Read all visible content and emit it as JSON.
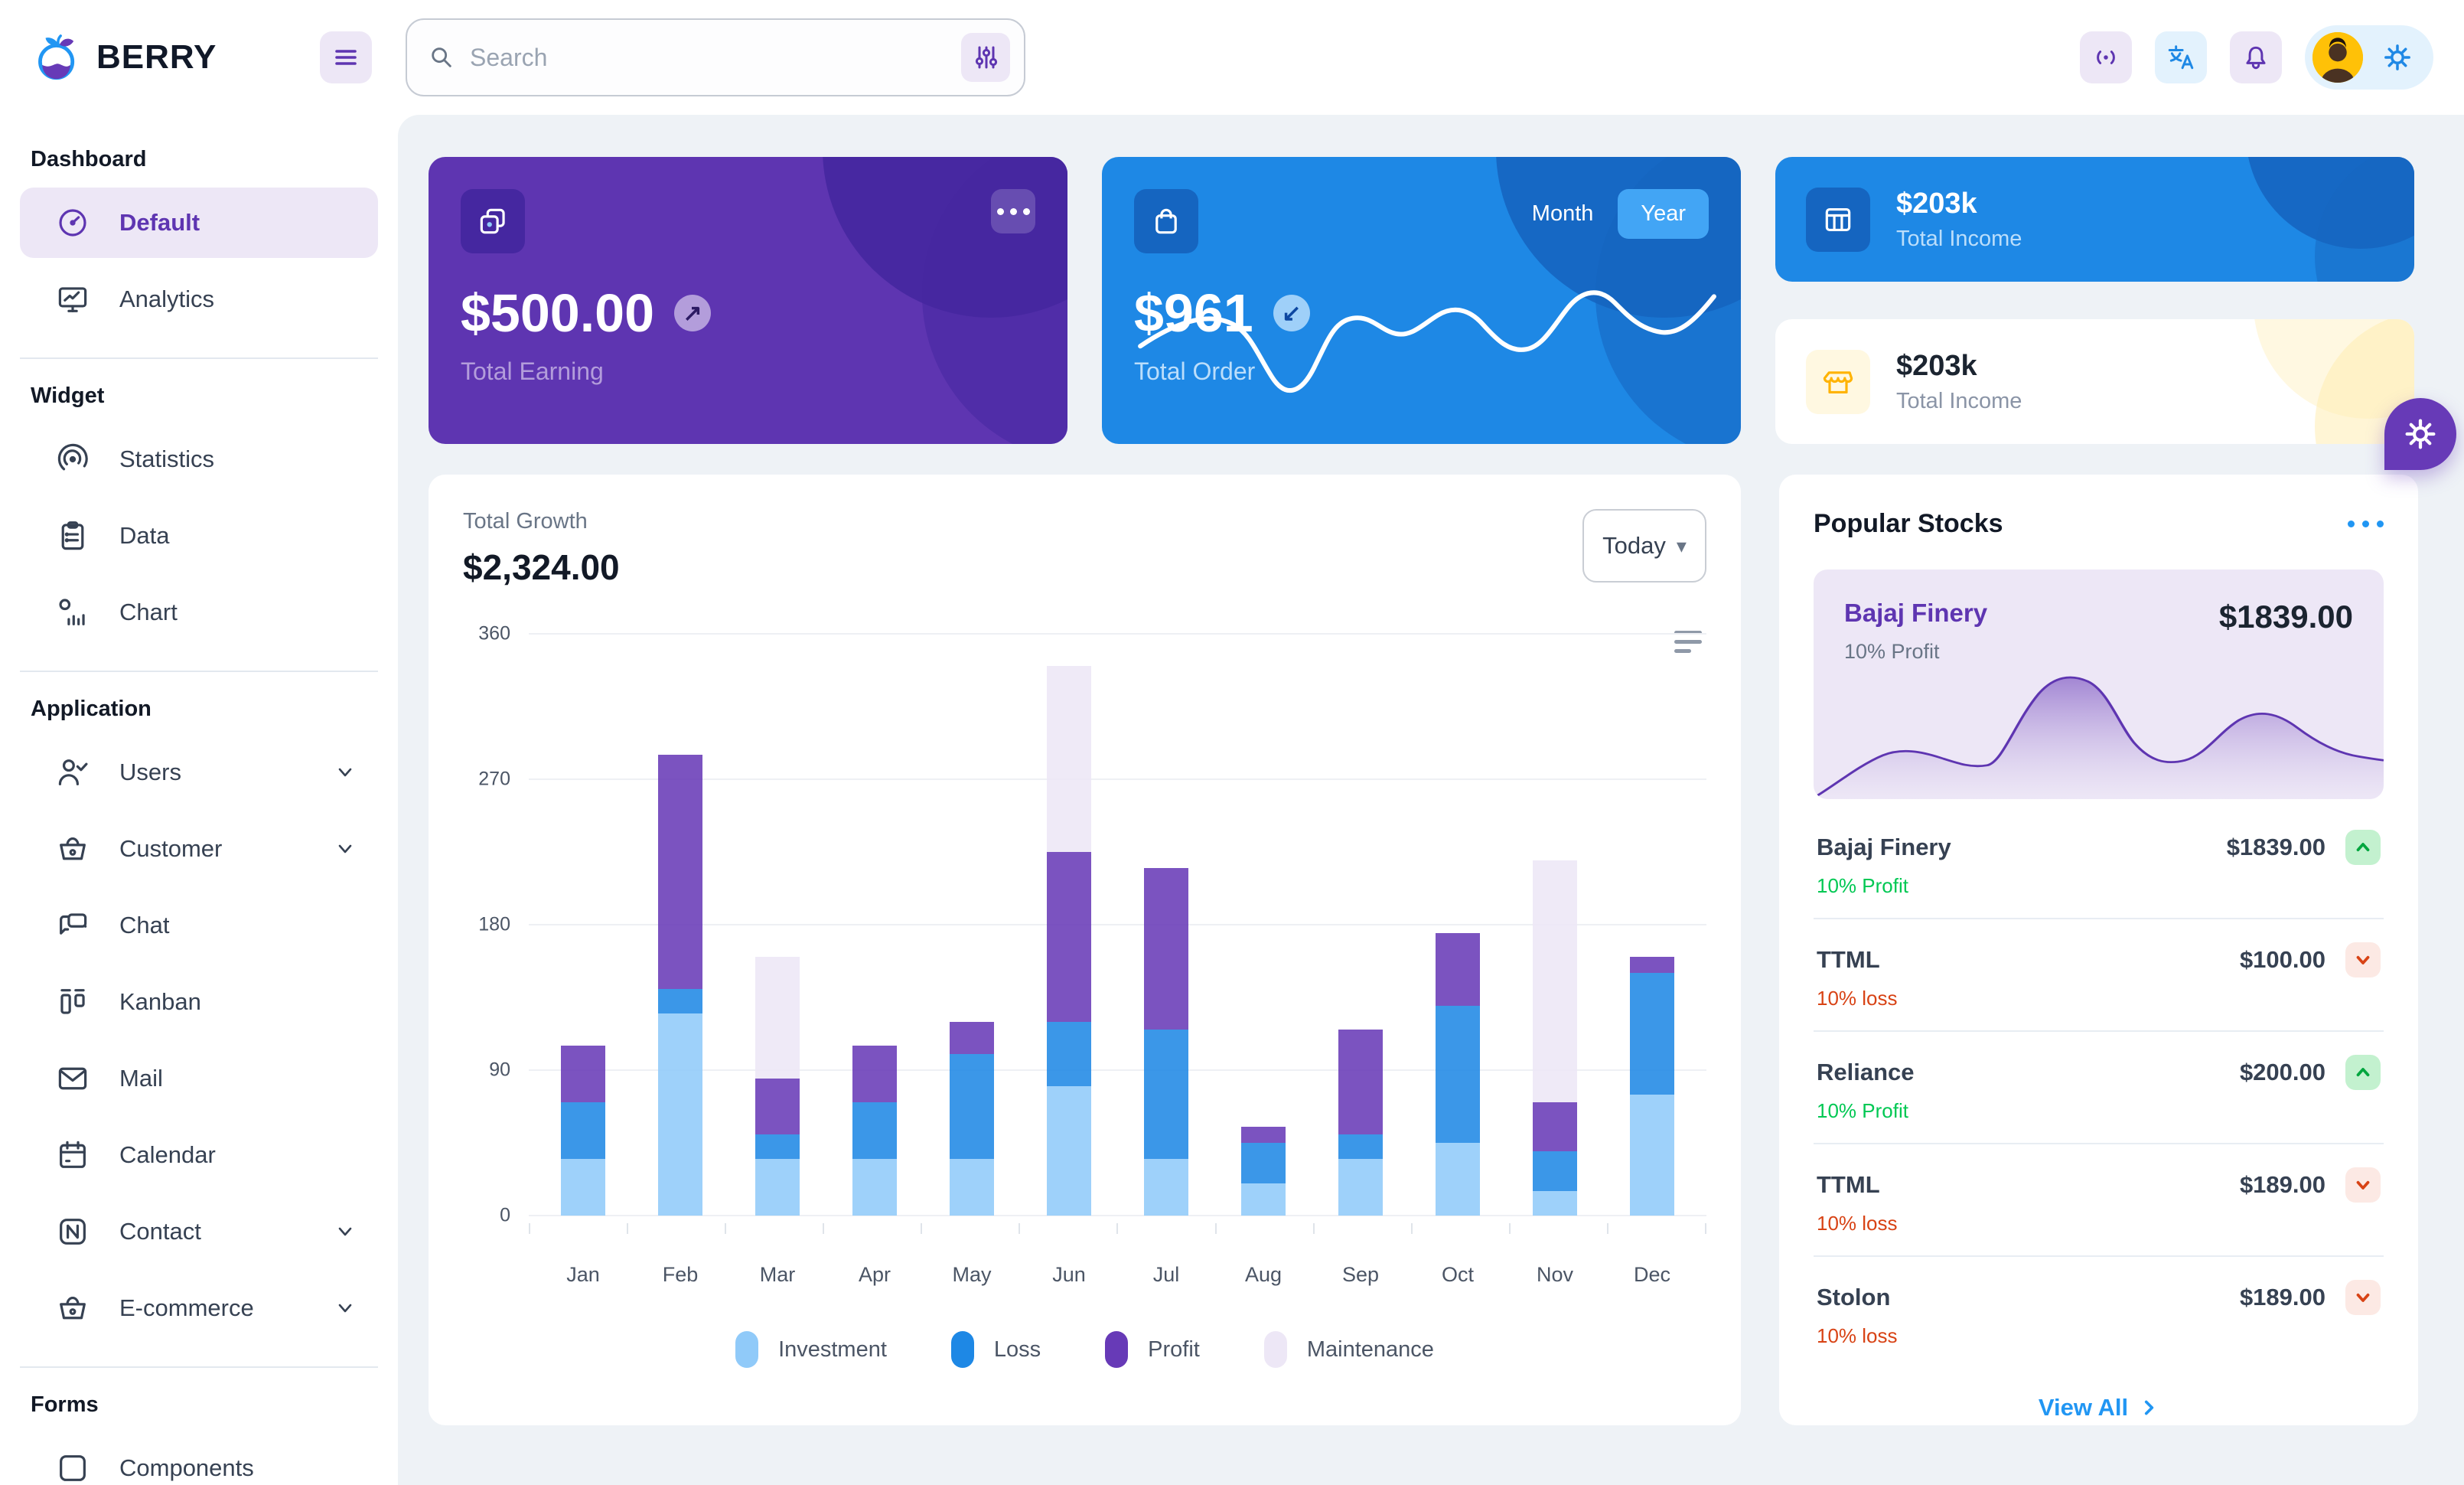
{
  "brand": {
    "name": "BERRY"
  },
  "header": {
    "search_placeholder": "Search"
  },
  "sidebar": {
    "sections": [
      {
        "title": "Dashboard",
        "items": [
          {
            "label": "Default",
            "icon": "gauge-icon",
            "active": true
          },
          {
            "label": "Analytics",
            "icon": "monitor-icon"
          }
        ]
      },
      {
        "title": "Widget",
        "items": [
          {
            "label": "Statistics",
            "icon": "statistics-icon"
          },
          {
            "label": "Data",
            "icon": "clipboard-icon"
          },
          {
            "label": "Chart",
            "icon": "chart-icon"
          }
        ]
      },
      {
        "title": "Application",
        "items": [
          {
            "label": "Users",
            "icon": "users-icon",
            "chevron": true
          },
          {
            "label": "Customer",
            "icon": "basket-icon",
            "chevron": true
          },
          {
            "label": "Chat",
            "icon": "chat-icon"
          },
          {
            "label": "Kanban",
            "icon": "kanban-icon"
          },
          {
            "label": "Mail",
            "icon": "mail-icon"
          },
          {
            "label": "Calendar",
            "icon": "calendar-icon"
          },
          {
            "label": "Contact",
            "icon": "nfc-icon",
            "chevron": true
          },
          {
            "label": "E-commerce",
            "icon": "basket-icon",
            "chevron": true
          }
        ]
      },
      {
        "title": "Forms",
        "items": [
          {
            "label": "Components",
            "icon": "square-icon",
            "partial": true
          }
        ]
      }
    ]
  },
  "cards": {
    "earning": {
      "value": "$500.00",
      "label": "Total Earning"
    },
    "order": {
      "value": "$961",
      "label": "Total Order",
      "month_label": "Month",
      "year_label": "Year",
      "active_period": "Year"
    },
    "income_blue": {
      "value": "$203k",
      "label": "Total Income"
    },
    "income_light": {
      "value": "$203k",
      "label": "Total Income"
    }
  },
  "growth": {
    "label": "Total Growth",
    "value": "$2,324.00",
    "period": "Today"
  },
  "stocks": {
    "title": "Popular Stocks",
    "featured": {
      "name": "Bajaj Finery",
      "price": "$1839.00",
      "sub": "10% Profit"
    },
    "items": [
      {
        "name": "Bajaj Finery",
        "price": "$1839.00",
        "sub": "10% Profit",
        "trend": "up"
      },
      {
        "name": "TTML",
        "price": "$100.00",
        "sub": "10% loss",
        "trend": "down"
      },
      {
        "name": "Reliance",
        "price": "$200.00",
        "sub": "10% Profit",
        "trend": "up"
      },
      {
        "name": "TTML",
        "price": "$189.00",
        "sub": "10% loss",
        "trend": "down"
      },
      {
        "name": "Stolon",
        "price": "$189.00",
        "sub": "10% loss",
        "trend": "down"
      }
    ],
    "view_all": "View All"
  },
  "chart_data": [
    {
      "type": "bar",
      "stacked": true,
      "title": "Total Growth",
      "total_label": "$2,324.00",
      "categories": [
        "Jan",
        "Feb",
        "Mar",
        "Apr",
        "May",
        "Jun",
        "Jul",
        "Aug",
        "Sep",
        "Oct",
        "Nov",
        "Dec"
      ],
      "series": [
        {
          "name": "Investment",
          "color": "#90caf9",
          "values": [
            35,
            125,
            35,
            35,
            35,
            80,
            35,
            20,
            35,
            45,
            15,
            75
          ]
        },
        {
          "name": "Loss",
          "color": "#1e88e5",
          "values": [
            35,
            15,
            15,
            35,
            65,
            40,
            80,
            25,
            15,
            85,
            25,
            75
          ]
        },
        {
          "name": "Profit",
          "color": "#673ab7",
          "values": [
            35,
            145,
            35,
            35,
            20,
            105,
            100,
            10,
            65,
            45,
            30,
            10
          ]
        },
        {
          "name": "Maintenance",
          "color": "#ede7f6",
          "values": [
            0,
            0,
            75,
            0,
            0,
            115,
            0,
            0,
            0,
            0,
            150,
            0
          ]
        }
      ],
      "ylim": [
        0,
        360
      ],
      "yticks": [
        0,
        90,
        180,
        270,
        360
      ],
      "xlabel": "",
      "ylabel": "",
      "grid": "horizontal",
      "legend_position": "bottom"
    },
    {
      "type": "area",
      "title": "Bajaj Finery price trend (featured sparkline, values estimated)",
      "x": [
        0,
        1,
        2,
        3,
        4,
        5,
        6,
        7,
        8
      ],
      "values": [
        2,
        28,
        22,
        24,
        86,
        40,
        58,
        46,
        30
      ],
      "color": "#5e35b1",
      "grid": "off",
      "legend_position": "none"
    },
    {
      "type": "line",
      "title": "Total Order yearly trend (sparkline, values estimated)",
      "x": [
        0,
        1,
        2,
        3,
        4,
        5,
        6,
        7,
        8,
        9
      ],
      "values": [
        45,
        55,
        20,
        50,
        42,
        60,
        48,
        75,
        55,
        80
      ],
      "color": "#ffffff",
      "grid": "off",
      "legend_position": "none"
    }
  ],
  "colors": {
    "purple_main": "#5e35b1",
    "purple_dark": "#4527a0",
    "blue_main": "#1e88e5",
    "blue_dark": "#1565c0",
    "bg_main": "#eef2f6",
    "success": "#00c853",
    "error": "#d84315",
    "warning": "#ffc107",
    "link_blue": "#2196f3"
  }
}
